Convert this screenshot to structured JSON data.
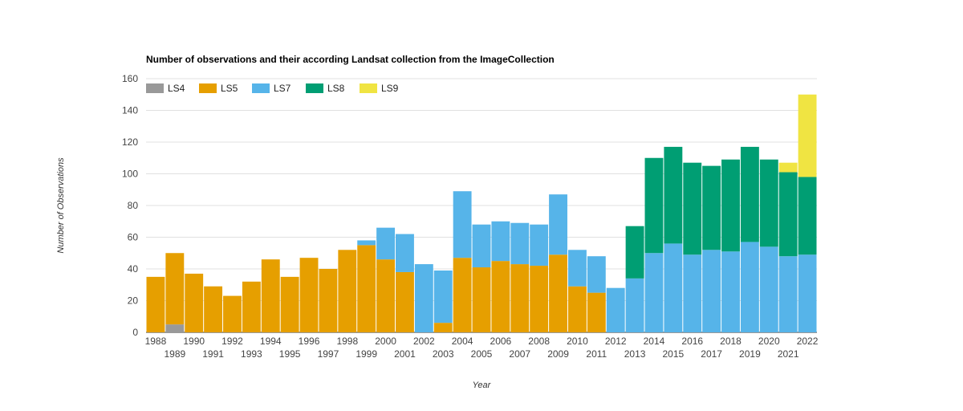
{
  "chart_data": {
    "type": "bar",
    "stacked": true,
    "title": "Number of observations and their according Landsat collection from the ImageCollection",
    "xlabel": "Year",
    "ylabel": "Number of Observations",
    "ylim": [
      0,
      160
    ],
    "yticks": [
      0,
      20,
      40,
      60,
      80,
      100,
      120,
      140,
      160
    ],
    "grid": true,
    "legend_position": "top-left",
    "categories": [
      "1988",
      "1989",
      "1990",
      "1991",
      "1992",
      "1993",
      "1994",
      "1995",
      "1996",
      "1997",
      "1998",
      "1999",
      "2000",
      "2001",
      "2002",
      "2003",
      "2004",
      "2005",
      "2006",
      "2007",
      "2008",
      "2009",
      "2010",
      "2011",
      "2012",
      "2013",
      "2014",
      "2015",
      "2016",
      "2017",
      "2018",
      "2019",
      "2020",
      "2021",
      "2022"
    ],
    "series": [
      {
        "name": "LS4",
        "color": "#999999",
        "values": [
          0,
          5,
          0,
          0,
          0,
          0,
          0,
          0,
          0,
          0,
          0,
          0,
          0,
          0,
          0,
          0,
          0,
          0,
          0,
          0,
          0,
          0,
          0,
          0,
          0,
          0,
          0,
          0,
          0,
          0,
          0,
          0,
          0,
          0,
          0
        ]
      },
      {
        "name": "LS5",
        "color": "#E69F00",
        "values": [
          35,
          45,
          37,
          29,
          23,
          32,
          46,
          35,
          47,
          40,
          52,
          55,
          46,
          38,
          0,
          6,
          47,
          41,
          45,
          43,
          42,
          49,
          29,
          25,
          0,
          0,
          0,
          0,
          0,
          0,
          0,
          0,
          0,
          0,
          0
        ]
      },
      {
        "name": "LS7",
        "color": "#56B4E9",
        "values": [
          0,
          0,
          0,
          0,
          0,
          0,
          0,
          0,
          0,
          0,
          0,
          3,
          20,
          24,
          43,
          33,
          42,
          27,
          25,
          26,
          26,
          38,
          23,
          23,
          28,
          34,
          50,
          56,
          49,
          52,
          51,
          57,
          54,
          48,
          49
        ]
      },
      {
        "name": "LS8",
        "color": "#009E73",
        "values": [
          0,
          0,
          0,
          0,
          0,
          0,
          0,
          0,
          0,
          0,
          0,
          0,
          0,
          0,
          0,
          0,
          0,
          0,
          0,
          0,
          0,
          0,
          0,
          0,
          0,
          33,
          60,
          61,
          58,
          53,
          58,
          60,
          55,
          53,
          49
        ]
      },
      {
        "name": "LS9",
        "color": "#F0E442",
        "values": [
          0,
          0,
          0,
          0,
          0,
          0,
          0,
          0,
          0,
          0,
          0,
          0,
          0,
          0,
          0,
          0,
          0,
          0,
          0,
          0,
          0,
          0,
          0,
          0,
          0,
          0,
          0,
          0,
          0,
          0,
          0,
          0,
          0,
          6,
          52
        ]
      }
    ]
  }
}
